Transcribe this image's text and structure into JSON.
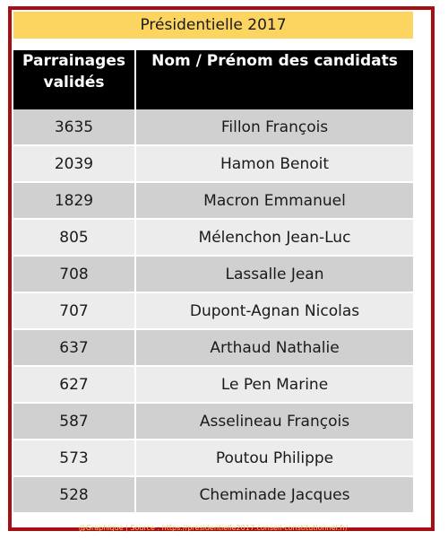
{
  "title": "Présidentielle 2017",
  "chart_data": {
    "type": "table",
    "columns": [
      "Parrainages\nvalidés",
      "Nom / Prénom des candidats"
    ],
    "rows": [
      {
        "votes": "3635",
        "name": "Fillon François"
      },
      {
        "votes": "2039",
        "name": "Hamon Benoit"
      },
      {
        "votes": "1829",
        "name": "Macron Emmanuel"
      },
      {
        "votes": "805",
        "name": "Mélenchon Jean-Luc"
      },
      {
        "votes": "708",
        "name": "Lassalle Jean"
      },
      {
        "votes": "707",
        "name": "Dupont-Agnan Nicolas"
      },
      {
        "votes": "637",
        "name": "Arthaud Nathalie"
      },
      {
        "votes": "627",
        "name": "Le Pen Marine"
      },
      {
        "votes": "587",
        "name": "Asselineau François"
      },
      {
        "votes": "573",
        "name": "Poutou Philippe"
      },
      {
        "votes": "528",
        "name": "Cheminade Jacques"
      }
    ]
  },
  "credit": "@Graphique | Source : https://presidentielle2017.conseil-constitutionnel.fr/",
  "colors": {
    "frame": "#a80f14",
    "title_bg": "#fcd460",
    "header_bg": "#000000",
    "row_dark": "#d0d0d0",
    "row_light": "#ececec"
  }
}
